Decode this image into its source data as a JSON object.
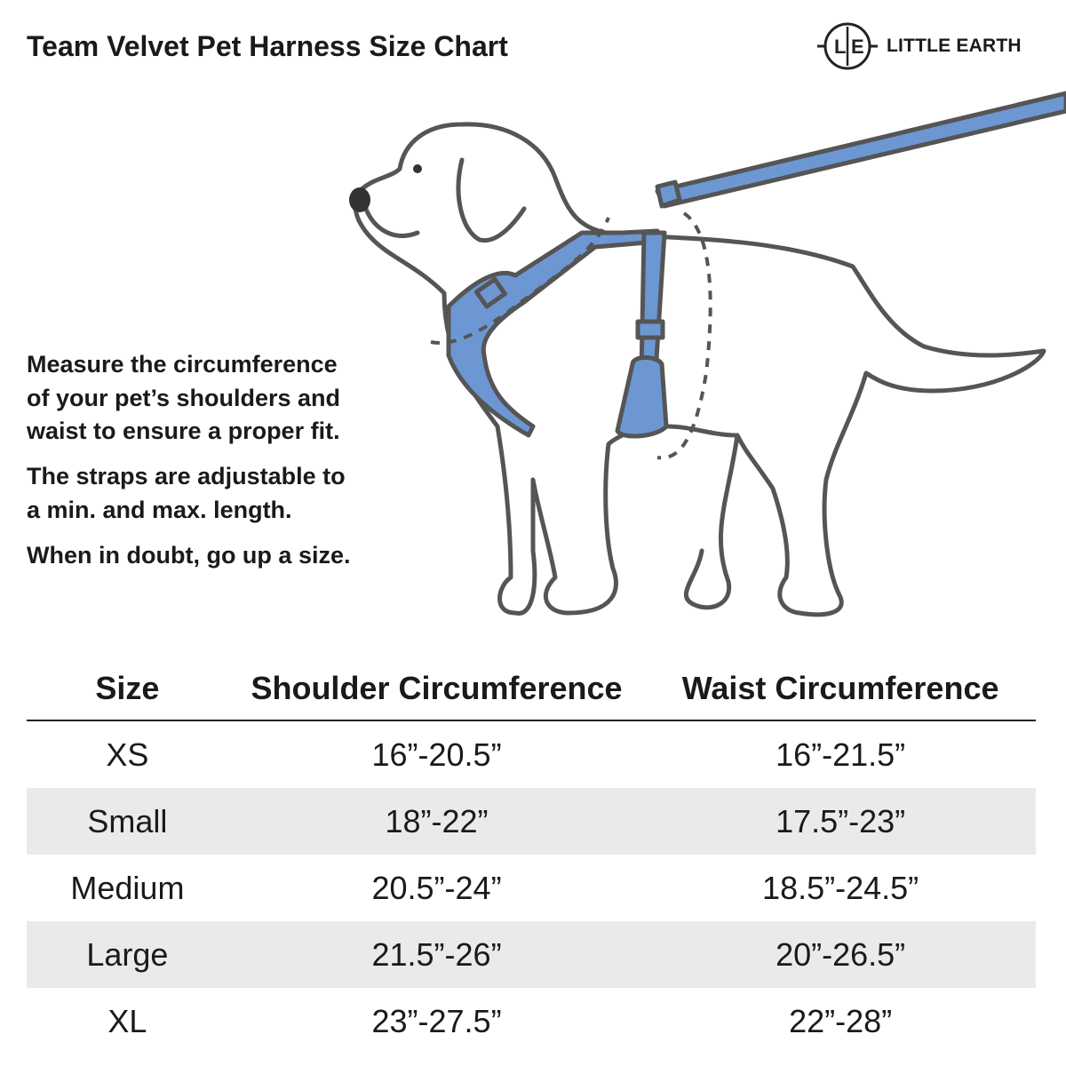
{
  "title": "Team Velvet Pet Harness Size Chart",
  "brand": {
    "logo_letters": "L|E",
    "name": "LITTLE EARTH"
  },
  "instructions": [
    [
      "Measure the circumference",
      "of your pet’s shoulders and",
      "waist to ensure a proper fit."
    ],
    [
      "The straps are adjustable to",
      "a min. and max. length."
    ],
    [
      "When in doubt, go up a size."
    ]
  ],
  "illustration": {
    "subject": "dog-wearing-harness-icon",
    "harness_color": "#6d97d3",
    "outline_color": "#555555"
  },
  "table": {
    "headers": [
      "Size",
      "Shoulder Circumference",
      "Waist Circumference"
    ],
    "rows": [
      [
        "XS",
        "16”-20.5”",
        "16”-21.5”"
      ],
      [
        "Small",
        "18”-22”",
        "17.5”-23”"
      ],
      [
        "Medium",
        "20.5”-24”",
        "18.5”-24.5”"
      ],
      [
        "Large",
        "21.5”-26”",
        "20”-26.5”"
      ],
      [
        "XL",
        "23”-27.5”",
        "22”-28”"
      ]
    ],
    "shade_color": "#ebeaea"
  }
}
